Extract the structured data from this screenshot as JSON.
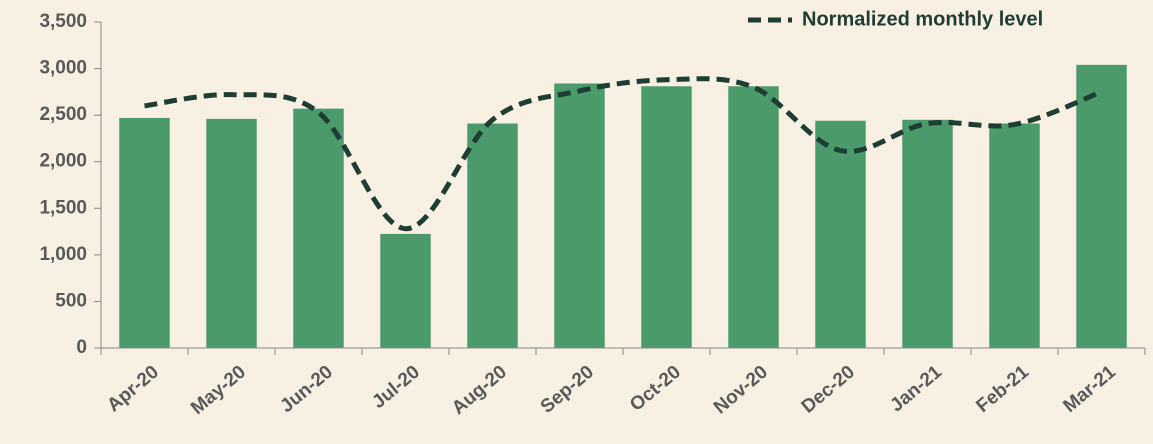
{
  "chart_data": {
    "type": "bar",
    "categories": [
      "Apr-20",
      "May-20",
      "Jun-20",
      "Jul-20",
      "Aug-20",
      "Sep-20",
      "Oct-20",
      "Nov-20",
      "Dec-20",
      "Jan-21",
      "Feb-21",
      "Mar-21"
    ],
    "values": [
      2470,
      2460,
      2570,
      1225,
      2410,
      2840,
      2810,
      2810,
      2440,
      2450,
      2410,
      3040
    ],
    "color": "#4a9a6b",
    "line": {
      "name": "Normalized monthly level",
      "color": "#1e3d33",
      "values": [
        2600,
        2720,
        2530,
        1280,
        2450,
        2760,
        2880,
        2800,
        2120,
        2410,
        2400,
        2750
      ]
    },
    "ylim": [
      0,
      3500
    ],
    "yticks": [
      0,
      {
        "value": 500,
        "label": "500"
      },
      {
        "value": 1000,
        "label": "1,000"
      },
      {
        "value": 1500,
        "label": "1,500"
      },
      {
        "value": 2000,
        "label": "2,000"
      },
      {
        "value": 2500,
        "label": "2,500"
      },
      {
        "value": 3000,
        "label": "3,000"
      },
      {
        "value": 3500,
        "label": "3,500"
      }
    ],
    "grid": false,
    "legend": "top-right"
  }
}
